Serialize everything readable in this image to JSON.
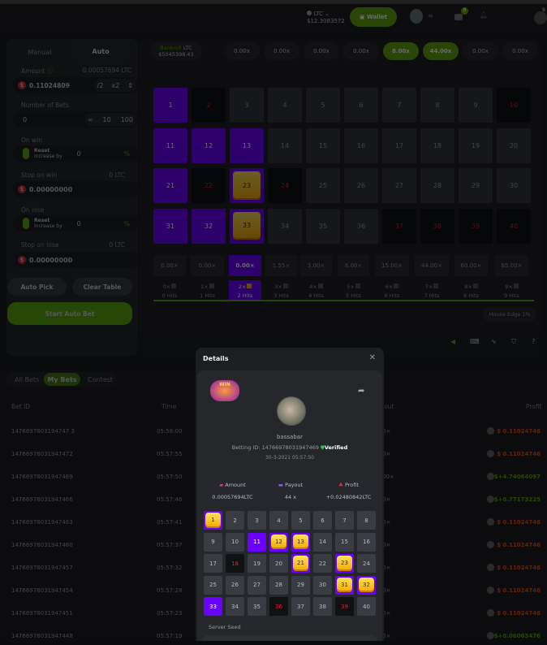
{
  "header": {
    "currency": "LTC",
    "balance": "$12.3083572",
    "wallet_label": "Wallet",
    "inbox_badge": "8",
    "chat_badge": "9"
  },
  "left": {
    "tabs": [
      "Manual",
      "Auto"
    ],
    "active_tab": "Auto",
    "amount_label": "Amount",
    "amount_ltc": "0.00057694 LTC",
    "amount_value": "0.11024809",
    "half": "/2",
    "double": "x2",
    "bets_label": "Number of Bets",
    "bets_value": "0",
    "bets_opts": [
      "∞",
      "10",
      "100"
    ],
    "on_win_label": "On win",
    "reset": "Reset",
    "increase_by": "Increase by",
    "on_win_value": "0",
    "pct": "%",
    "stop_win_label": "Stop on win",
    "stop_win_ltc": "0 LTC",
    "stop_win_value": "0.00000000",
    "on_lose_label": "On lose",
    "on_lose_value": "0",
    "stop_lose_label": "Stop on lose",
    "stop_lose_ltc": "0 LTC",
    "stop_lose_value": "0.00000000",
    "auto_pick": "Auto Pick",
    "clear_table": "Clear Table",
    "start": "Start Auto Bet"
  },
  "main": {
    "bankroll_label": "Bankroll",
    "bankroll_cur": "LTC",
    "bankroll_value": "$5045398.43",
    "history": [
      {
        "v": "0.00x",
        "win": false
      },
      {
        "v": "0.00x",
        "win": false
      },
      {
        "v": "0.00x",
        "win": false
      },
      {
        "v": "0.00x",
        "win": false
      },
      {
        "v": "8.00x",
        "win": true
      },
      {
        "v": "44.00x",
        "win": true
      },
      {
        "v": "0.00x",
        "win": false
      },
      {
        "v": "0.00x",
        "win": false
      }
    ],
    "selected": [
      1,
      11,
      12,
      13,
      21,
      31,
      32
    ],
    "gems": [
      23,
      33
    ],
    "misses": [
      2,
      10,
      22,
      24,
      37,
      38,
      39,
      40
    ],
    "payouts": [
      "0.00×",
      "0.00×",
      "0.00×",
      "1.55×",
      "3.00×",
      "8.00×",
      "15.00×",
      "44.00×",
      "60.00×",
      "85.00×"
    ],
    "hits": [
      {
        "k": "0×",
        "l": "0 Hits"
      },
      {
        "k": "1×",
        "l": "1 Hits"
      },
      {
        "k": "2×",
        "l": "2 Hits"
      },
      {
        "k": "3×",
        "l": "3 Hits"
      },
      {
        "k": "4×",
        "l": "4 Hits"
      },
      {
        "k": "5×",
        "l": "5 Hits"
      },
      {
        "k": "6×",
        "l": "6 Hits"
      },
      {
        "k": "7×",
        "l": "7 Hits"
      },
      {
        "k": "8×",
        "l": "8 Hits"
      },
      {
        "k": "9×",
        "l": "9 Hits"
      }
    ],
    "active_hit": 2,
    "house_edge": "House Edge 1%"
  },
  "bets": {
    "tabs": [
      "All Bets",
      "My Bets",
      "Contest"
    ],
    "active_tab": "My Bets",
    "columns": [
      "Bet ID",
      "Time",
      "Payout",
      "Profit"
    ],
    "rows": [
      {
        "id": "1476697803194747 3",
        "time": "05:58:00",
        "payout": "0.00×",
        "profit": "$  0.11024746",
        "win": false
      },
      {
        "id": "14766978031947472",
        "time": "05:57:55",
        "payout": "0.00×",
        "profit": "$  0.11024746",
        "win": false
      },
      {
        "id": "14766978031947469",
        "time": "05:57:50",
        "payout": "44.00×",
        "profit": "$+4.74064097",
        "win": true
      },
      {
        "id": "14766978031947466",
        "time": "05:57:46",
        "payout": "8.00×",
        "profit": "$+0.77173225",
        "win": true
      },
      {
        "id": "14766978031947463",
        "time": "05:57:41",
        "payout": "0.00×",
        "profit": "$  0.11024746",
        "win": false
      },
      {
        "id": "14766978031947460",
        "time": "05:57:37",
        "payout": "0.00×",
        "profit": "$  0.11024746",
        "win": false
      },
      {
        "id": "14766978031947457",
        "time": "05:57:32",
        "payout": "0.00×",
        "profit": "$  0.11024746",
        "win": false
      },
      {
        "id": "14766978031947454",
        "time": "05:57:28",
        "payout": "0.00×",
        "profit": "$  0.11024746",
        "win": false
      },
      {
        "id": "14766978031947451",
        "time": "05:57:23",
        "payout": "0.00×",
        "profit": "$  0.11024746",
        "win": false
      },
      {
        "id": "14766978031947448",
        "time": "05:57:19",
        "payout": "1.55×",
        "profit": "$+0.06063476",
        "win": true
      }
    ]
  },
  "modal": {
    "title": "Details",
    "badge": "WIN",
    "username": "bassabar",
    "betting_id": "Betting ID: 14766978031947469",
    "verified": "Verified",
    "datetime": "30-3-2021 05:57:50",
    "amount_label": "Amount",
    "amount": "0.00057694LTC",
    "payout_label": "Payout",
    "payout": "44 x",
    "profit_label": "Profit",
    "profit": "+0.02480842LTC",
    "selected": [
      1,
      11,
      12,
      13,
      21,
      23,
      31,
      32,
      33
    ],
    "gems": [
      1,
      12,
      13,
      21,
      23,
      31,
      32
    ],
    "misses": [
      18,
      36,
      39
    ],
    "server_seed_label": "Server Seed"
  },
  "colors": {
    "accent": "#5fa80f",
    "selected": "#6a00ff",
    "miss": "#e02030",
    "loss": "#e0561a"
  }
}
